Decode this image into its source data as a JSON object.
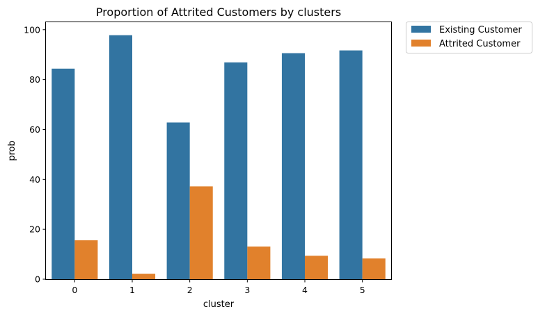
{
  "chart_data": {
    "type": "bar",
    "title": "Proportion of Attrited Customers by clusters",
    "xlabel": "cluster",
    "ylabel": "prob",
    "categories": [
      "0",
      "1",
      "2",
      "3",
      "4",
      "5"
    ],
    "ylim": [
      0,
      103
    ],
    "yticks": [
      0,
      20,
      40,
      60,
      80,
      100
    ],
    "grid": false,
    "legend_position": "outside-top-right",
    "series": [
      {
        "name": "Existing Customer",
        "color": "#3274a1",
        "values": [
          84.4,
          97.8,
          62.8,
          86.9,
          90.6,
          91.7
        ]
      },
      {
        "name": "Attrited Customer",
        "color": "#e1812c",
        "values": [
          15.6,
          2.2,
          37.2,
          13.1,
          9.4,
          8.3
        ]
      }
    ]
  }
}
